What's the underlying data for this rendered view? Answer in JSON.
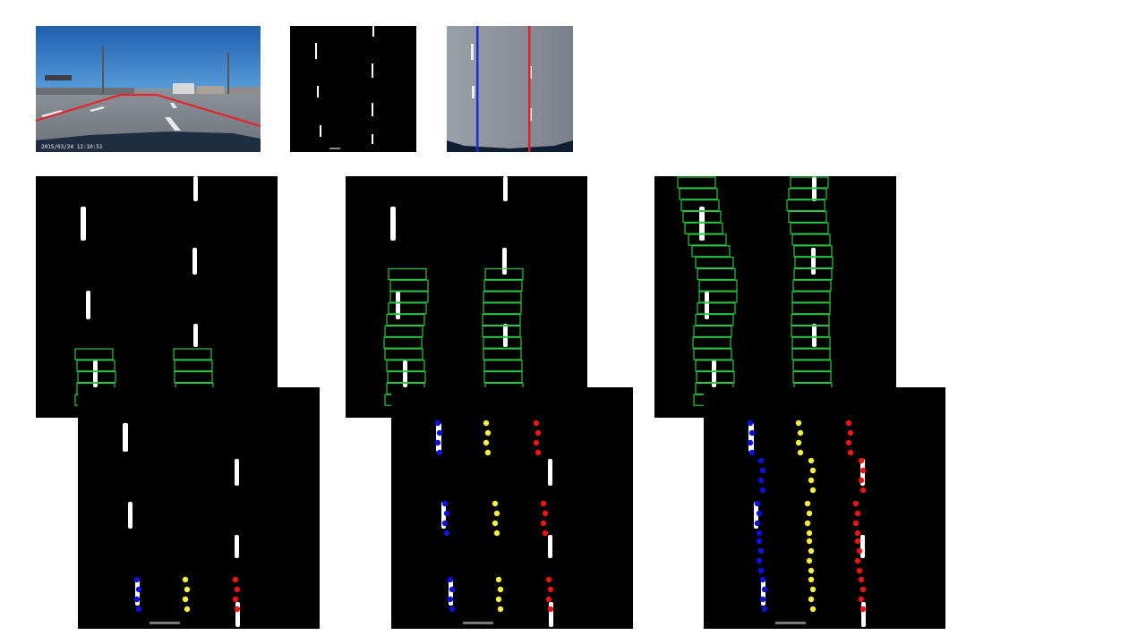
{
  "camera_frame": {
    "timestamp": "2015/03/24 12:10:51",
    "roi_color": "#e5242c"
  },
  "birdseye": {
    "left_line_color": "#1f2bd6",
    "right_line_color": "#e0202a"
  },
  "colors": {
    "window_box": "#28c840",
    "left_points": "#1010dd",
    "center_points": "#f4ee3c",
    "right_points": "#ee1414",
    "mask": "#ffffff",
    "background": "#000000"
  },
  "sliding_window_steps": [
    {
      "left_windows": 5,
      "right_windows": 5
    },
    {
      "left_windows": 12,
      "right_windows": 12
    },
    {
      "left_windows": 20,
      "right_windows": 20
    }
  ],
  "lane_point_steps": [
    {
      "point_groups": 1
    },
    {
      "point_groups": 3
    },
    {
      "point_groups": 5
    }
  ]
}
